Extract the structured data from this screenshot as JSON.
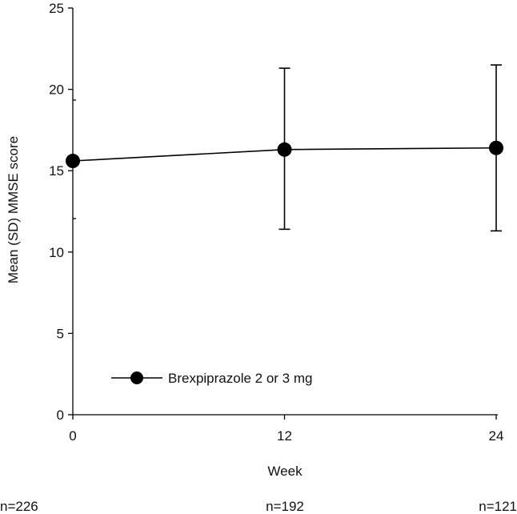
{
  "chart_data": {
    "type": "line",
    "title": "",
    "xlabel": "Week",
    "ylabel": "Mean (SD) MMSE score",
    "x": [
      0,
      12,
      24
    ],
    "x_tick_labels": [
      "0",
      "12",
      "24"
    ],
    "ylim": [
      0,
      25
    ],
    "y_ticks": [
      0,
      5,
      10,
      15,
      20,
      25
    ],
    "y_tick_labels": [
      "0",
      "5",
      "10",
      "15",
      "20",
      "25"
    ],
    "grid": false,
    "legend_position": "bottom-left",
    "series": [
      {
        "name": "Brexpiprazole 2 or 3 mg",
        "color": "#000000",
        "values": [
          15.6,
          16.3,
          16.4
        ],
        "sd_lower": [
          null,
          11.4,
          11.3
        ],
        "sd_upper": [
          null,
          21.3,
          21.5
        ]
      }
    ],
    "n_labels": [
      "n=226",
      "n=192",
      "n=121"
    ]
  }
}
